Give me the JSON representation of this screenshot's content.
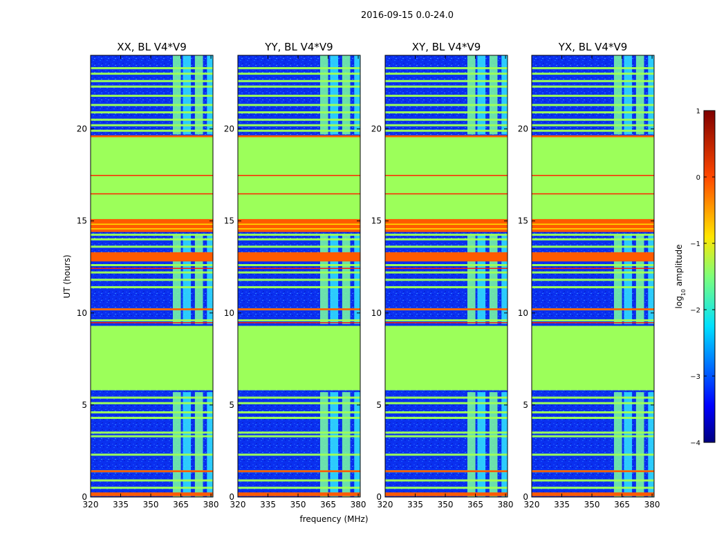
{
  "title": "2016-09-15 0.0-24.0",
  "chart_data": {
    "type": "heatmap",
    "suptitle": "2016-09-15 0.0-24.0",
    "xlabel": "frequency (MHz)",
    "ylabel": "UT (hours)",
    "xlim": [
      320,
      381
    ],
    "ylim": [
      0,
      24
    ],
    "xticks": [
      320,
      335,
      350,
      365,
      380
    ],
    "yticks": [
      0,
      5,
      10,
      15,
      20
    ],
    "colorbar": {
      "label": "log",
      "label_sub": "10",
      "label_rest": " amplitude",
      "range": [
        -4,
        1
      ],
      "ticks": [
        -4,
        -3,
        -2,
        -1,
        0,
        1
      ],
      "tick_labels": [
        "−4",
        "−3",
        "−2",
        "−1",
        "0",
        "1"
      ]
    },
    "colors": {
      "background": "#0a30ef",
      "flagged": "#9cff5a",
      "line": "#00c8ff",
      "orange": "#ff5a00"
    },
    "panels": [
      {
        "title": "XX, BL V4*V9",
        "active_blocks_mhz": [
          [
            361,
            365
          ],
          [
            366,
            370
          ],
          [
            372,
            376
          ],
          [
            378,
            382
          ]
        ],
        "upper_blocks_mhz": [
          [
            364,
            368
          ],
          [
            369,
            373
          ],
          [
            375,
            379
          ]
        ]
      },
      {
        "title": "YY, BL V4*V9",
        "active_blocks_mhz": [
          [
            361,
            365
          ],
          [
            366,
            370
          ],
          [
            372,
            376
          ],
          [
            378,
            382
          ]
        ],
        "upper_blocks_mhz": [
          [
            364,
            368
          ],
          [
            369,
            373
          ],
          [
            375,
            379
          ]
        ]
      },
      {
        "title": "XY, BL V4*V9",
        "active_blocks_mhz": [
          [
            361,
            365
          ],
          [
            366,
            370
          ],
          [
            372,
            376
          ],
          [
            378,
            382
          ]
        ],
        "upper_blocks_mhz": [
          [
            364,
            368
          ],
          [
            369,
            373
          ],
          [
            375,
            379
          ]
        ]
      },
      {
        "title": "YX, BL V4*V9",
        "active_blocks_mhz": [
          [
            361,
            365
          ],
          [
            366,
            370
          ],
          [
            372,
            376
          ],
          [
            378,
            382
          ]
        ],
        "upper_blocks_mhz": [
          [
            364,
            368
          ],
          [
            369,
            373
          ],
          [
            375,
            379
          ]
        ]
      }
    ],
    "flagged_intervals_hours": [
      [
        5.8,
        9.3
      ],
      [
        15.1,
        19.6
      ],
      [
        16.3,
        17.3
      ],
      [
        17.55,
        19.6
      ]
    ],
    "orange_intervals_hours": [
      [
        14.4,
        15.1
      ],
      [
        12.8,
        13.3
      ],
      [
        19.55,
        19.65
      ],
      [
        10.15,
        10.25
      ],
      [
        1.35,
        1.45
      ],
      [
        0.05,
        0.25
      ]
    ],
    "green_lines_hours": [
      0.5,
      0.9,
      1.4,
      2.3,
      3.3,
      3.5,
      4.3,
      4.6,
      5.1,
      5.4,
      9.6,
      10.2,
      11.4,
      11.8,
      12.2,
      12.6,
      13.6,
      14.0,
      14.25,
      19.9,
      20.2,
      20.5,
      20.9,
      21.3,
      21.8,
      22.3,
      22.6,
      23.0,
      23.3
    ],
    "magenta_lines_hours": [
      9.5,
      12.45,
      16.5,
      17.5
    ],
    "upper_block_extent_hours": [
      [
        0,
        5.7
      ],
      [
        9.4,
        14.3
      ],
      [
        19.7,
        24
      ]
    ]
  }
}
